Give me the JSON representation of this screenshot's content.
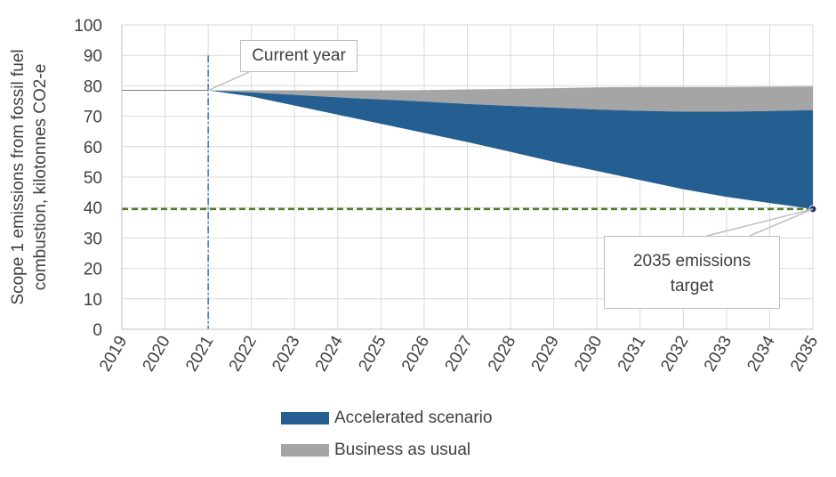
{
  "chart_data": {
    "type": "area",
    "x": [
      2019,
      2020,
      2021,
      2022,
      2023,
      2024,
      2025,
      2026,
      2027,
      2028,
      2029,
      2030,
      2031,
      2032,
      2033,
      2034,
      2035
    ],
    "categories": [
      "2019",
      "2020",
      "2021",
      "2022",
      "2023",
      "2024",
      "2025",
      "2026",
      "2027",
      "2028",
      "2029",
      "2030",
      "2031",
      "2032",
      "2033",
      "2034",
      "2035"
    ],
    "ylabel_lines": [
      "Scope 1 emissions from fossil fuel",
      "combustion, kilotonnes CO2-e"
    ],
    "ylim": [
      0,
      100
    ],
    "yticks": [
      0,
      10,
      20,
      30,
      40,
      50,
      60,
      70,
      80,
      90,
      100
    ],
    "grid": true,
    "series": [
      {
        "name": "Accelerated scenario",
        "color": "#255e91",
        "x": [
          2021,
          2022,
          2023,
          2024,
          2025,
          2026,
          2027,
          2028,
          2029,
          2030,
          2031,
          2032,
          2033,
          2034,
          2035
        ],
        "values": [
          78.5,
          76.5,
          73.5,
          70.5,
          67.5,
          64.5,
          61.5,
          58.3,
          55.0,
          52.0,
          49.0,
          46.0,
          43.5,
          41.5,
          39.5
        ],
        "upper": [
          78.5,
          77.8,
          77.0,
          76.2,
          75.5,
          74.8,
          74.0,
          73.4,
          72.8,
          72.2,
          71.8,
          71.5,
          71.5,
          71.7,
          72.0
        ]
      },
      {
        "name": "Business as usual",
        "color": "#a5a5a5",
        "x": [
          2021,
          2022,
          2023,
          2024,
          2025,
          2026,
          2027,
          2028,
          2029,
          2030,
          2031,
          2032,
          2033,
          2034,
          2035
        ],
        "values": [
          78.5,
          78.5,
          78.5,
          78.5,
          78.5,
          78.6,
          78.8,
          79.0,
          79.2,
          79.5,
          79.6,
          79.6,
          79.6,
          79.7,
          79.8
        ]
      }
    ],
    "historical_line": {
      "x": [
        2019,
        2021
      ],
      "values": [
        78.5,
        78.5
      ],
      "color": "#7f7f7f"
    },
    "target_line": {
      "value": 39.5,
      "color": "#4f7a28"
    },
    "target_point": {
      "x": 2035,
      "value": 39.5,
      "color": "#1f3864"
    },
    "current_year_line": {
      "x": 2021,
      "color": "#2e75b6"
    },
    "annotations": [
      {
        "id": "current_year",
        "text": "Current year",
        "x": 2021,
        "y": 78.5
      },
      {
        "id": "target",
        "text_lines": [
          "2035 emissions",
          "target"
        ],
        "x": 2035,
        "y": 39.5
      }
    ],
    "legend_position": "bottom"
  }
}
